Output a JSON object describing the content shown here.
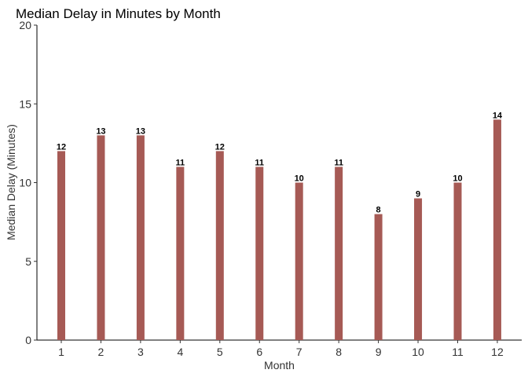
{
  "chart_data": {
    "type": "bar",
    "title": "Median Delay in Minutes by Month",
    "xlabel": "Month",
    "ylabel": "Median Delay (Minutes)",
    "categories": [
      "1",
      "2",
      "3",
      "4",
      "5",
      "6",
      "7",
      "8",
      "9",
      "10",
      "11",
      "12"
    ],
    "values": [
      12,
      13,
      13,
      11,
      12,
      11,
      10,
      11,
      8,
      9,
      10,
      14
    ],
    "data_labels": [
      "12",
      "13",
      "13",
      "11",
      "12",
      "11",
      "10",
      "11",
      "8",
      "9",
      "10",
      "14"
    ],
    "ylim": [
      0,
      20
    ],
    "yticks": [
      0,
      5,
      10,
      15,
      20
    ],
    "grid": false,
    "legend": "none",
    "bar_color": "#a65a55"
  }
}
